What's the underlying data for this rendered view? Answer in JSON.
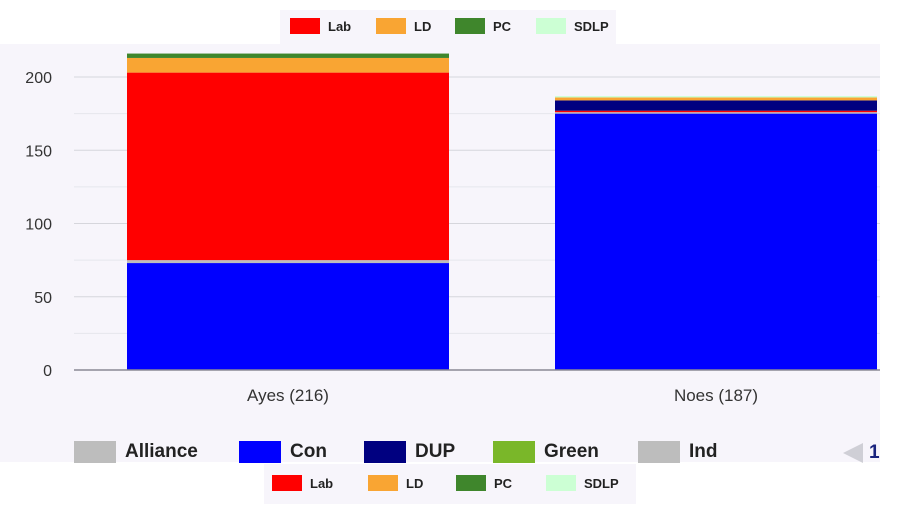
{
  "chart_data": {
    "type": "bar",
    "stacked": true,
    "categories": [
      "Ayes (216)",
      "Noes (187)"
    ],
    "series": [
      {
        "name": "Con",
        "color": "#0000ff",
        "values": [
          73,
          175
        ]
      },
      {
        "name": "Ind",
        "color": "#bdbdbd",
        "values": [
          2,
          1
        ]
      },
      {
        "name": "Lab",
        "color": "#ff0000",
        "values": [
          128,
          1
        ]
      },
      {
        "name": "DUP",
        "color": "#000080",
        "values": [
          0,
          7
        ]
      },
      {
        "name": "LD",
        "color": "#f9a533",
        "values": [
          10,
          2
        ]
      },
      {
        "name": "Green",
        "color": "#7ab729",
        "values": [
          0,
          0
        ]
      },
      {
        "name": "PC",
        "color": "#3f862c",
        "values": [
          3,
          0
        ]
      },
      {
        "name": "Alliance",
        "color": "#bdbdbd",
        "values": [
          0,
          0
        ]
      },
      {
        "name": "SDLP",
        "color": "#ccffd4",
        "values": [
          0,
          1
        ]
      }
    ],
    "yticks": [
      0,
      50,
      100,
      150,
      200
    ],
    "ylim": [
      0,
      200
    ],
    "grid": true,
    "legend_placement": "bottom"
  },
  "legend_top": [
    {
      "label": "Lab",
      "color": "#ff0000"
    },
    {
      "label": "LD",
      "color": "#f9a533"
    },
    {
      "label": "PC",
      "color": "#3f862c"
    },
    {
      "label": "SDLP",
      "color": "#ccffd4"
    }
  ],
  "legend_main": [
    {
      "label": "Alliance",
      "color": "#bdbdbd"
    },
    {
      "label": "Con",
      "color": "#0000ff"
    },
    {
      "label": "DUP",
      "color": "#000080"
    },
    {
      "label": "Green",
      "color": "#7ab729"
    },
    {
      "label": "Ind",
      "color": "#bdbdbd"
    }
  ],
  "legend_bottom": [
    {
      "label": "Lab",
      "color": "#ff0000"
    },
    {
      "label": "LD",
      "color": "#f9a533"
    },
    {
      "label": "PC",
      "color": "#3f862c"
    },
    {
      "label": "SDLP",
      "color": "#ccffd4"
    }
  ],
  "pager": {
    "page": "1"
  }
}
